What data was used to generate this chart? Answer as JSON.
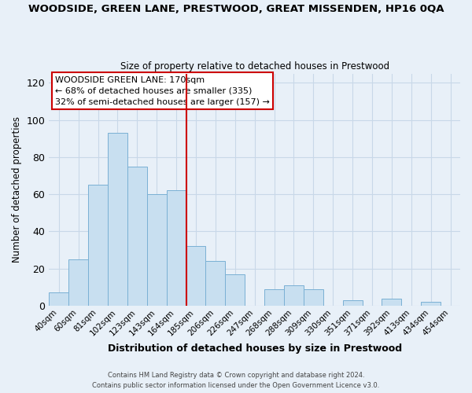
{
  "title": "WOODSIDE, GREEN LANE, PRESTWOOD, GREAT MISSENDEN, HP16 0QA",
  "subtitle": "Size of property relative to detached houses in Prestwood",
  "xlabel": "Distribution of detached houses by size in Prestwood",
  "ylabel": "Number of detached properties",
  "bin_labels": [
    "40sqm",
    "60sqm",
    "81sqm",
    "102sqm",
    "123sqm",
    "143sqm",
    "164sqm",
    "185sqm",
    "206sqm",
    "226sqm",
    "247sqm",
    "268sqm",
    "288sqm",
    "309sqm",
    "330sqm",
    "351sqm",
    "371sqm",
    "392sqm",
    "413sqm",
    "434sqm",
    "454sqm"
  ],
  "bar_values": [
    7,
    25,
    65,
    93,
    75,
    60,
    62,
    32,
    24,
    17,
    0,
    9,
    11,
    9,
    0,
    3,
    0,
    4,
    0,
    2,
    0
  ],
  "bar_color": "#c8dff0",
  "bar_edge_color": "#7ab0d4",
  "property_line_x": 6.5,
  "property_size": "170sqm",
  "property_name": "WOODSIDE GREEN LANE",
  "pct_smaller": 68,
  "count_smaller": 335,
  "pct_larger": 32,
  "count_larger": 157,
  "annotation_type": "semi-detached",
  "ylim": [
    0,
    125
  ],
  "yticks": [
    0,
    20,
    40,
    60,
    80,
    100,
    120
  ],
  "footer1": "Contains HM Land Registry data © Crown copyright and database right 2024.",
  "footer2": "Contains public sector information licensed under the Open Government Licence v3.0.",
  "line_color": "#cc0000",
  "box_color": "#ffffff",
  "box_edge_color": "#cc0000",
  "grid_color": "#c8d8e8",
  "background_color": "#e8f0f8"
}
